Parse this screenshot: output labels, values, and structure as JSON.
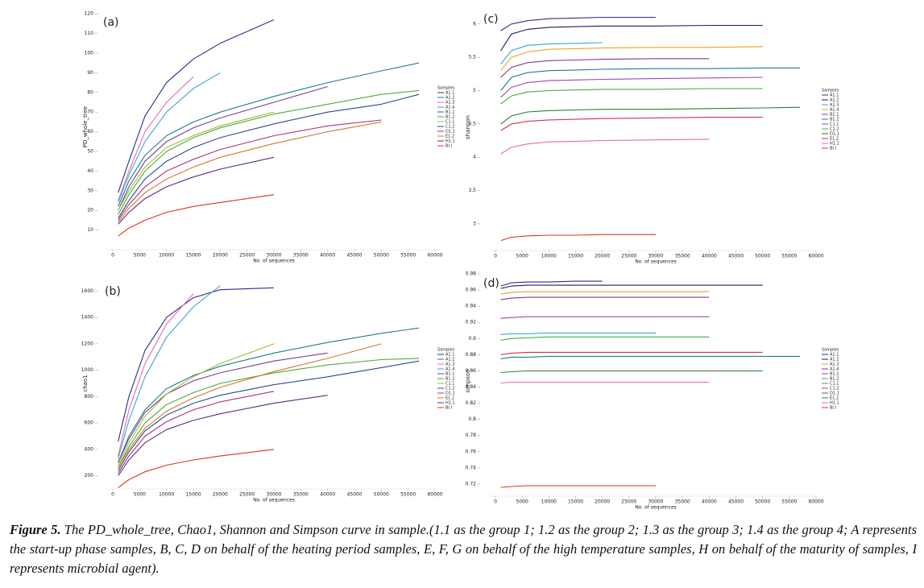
{
  "chart_data": [
    {
      "type": "line",
      "title": "(a)",
      "ylabel": "PD_whole_tree",
      "xlabel": "No. of sequences",
      "legend_title": "Samples",
      "x": [
        1000,
        3000,
        6000,
        10000,
        15000,
        20000,
        30000,
        40000,
        50000,
        57000
      ],
      "xlim": [
        0,
        60000
      ],
      "ylim": [
        0,
        125
      ],
      "xticks": [
        0,
        5000,
        10000,
        15000,
        20000,
        25000,
        30000,
        35000,
        40000,
        45000,
        50000,
        55000,
        60000
      ],
      "yticks": [
        10,
        20,
        30,
        40,
        50,
        60,
        70,
        80,
        90,
        100,
        110,
        120
      ],
      "series": [
        {
          "name": "A1.1",
          "color": "#2b2d8c",
          "values": [
            29,
            45,
            68,
            85,
            97,
            105,
            117,
            null,
            null,
            null
          ]
        },
        {
          "name": "A1.2",
          "color": "#1b7f8f",
          "values": [
            22,
            35,
            48,
            58,
            65,
            70,
            78,
            85,
            91,
            95
          ]
        },
        {
          "name": "A1.3",
          "color": "#e86aa8",
          "values": [
            25,
            40,
            60,
            75,
            88,
            null,
            null,
            null,
            null,
            null
          ]
        },
        {
          "name": "A1.4",
          "color": "#3aa6d6",
          "values": [
            24,
            38,
            55,
            70,
            82,
            90,
            null,
            null,
            null,
            null
          ]
        },
        {
          "name": "B1.1",
          "color": "#7a3d9a",
          "values": [
            20,
            32,
            45,
            55,
            62,
            67,
            75,
            83,
            null,
            null
          ]
        },
        {
          "name": "B1.2",
          "color": "#4caa3a",
          "values": [
            18,
            28,
            40,
            50,
            57,
            62,
            69,
            74,
            79,
            81
          ]
        },
        {
          "name": "C1.1",
          "color": "#9abf2a",
          "values": [
            20,
            30,
            42,
            52,
            58,
            63,
            70,
            null,
            null,
            null
          ]
        },
        {
          "name": "C1.2",
          "color": "#2a4a9a",
          "values": [
            16,
            25,
            36,
            45,
            52,
            57,
            64,
            70,
            74,
            79
          ]
        },
        {
          "name": "D1.1",
          "color": "#b0307a",
          "values": [
            15,
            23,
            32,
            40,
            46,
            51,
            58,
            63,
            66,
            null
          ]
        },
        {
          "name": "E1.2",
          "color": "#d9772a",
          "values": [
            14,
            21,
            29,
            36,
            42,
            47,
            54,
            60,
            65,
            null
          ]
        },
        {
          "name": "H1.1",
          "color": "#5b2a86",
          "values": [
            13,
            19,
            26,
            32,
            37,
            41,
            47,
            null,
            null,
            null
          ]
        },
        {
          "name": "BI.I",
          "color": "#e3321b",
          "values": [
            7,
            11,
            15,
            19,
            22,
            24,
            28,
            null,
            null,
            null
          ]
        }
      ]
    },
    {
      "type": "line",
      "title": "(b)",
      "ylabel": "chao1",
      "xlabel": "No. of sequences",
      "legend_title": "Samples",
      "x": [
        1000,
        3000,
        6000,
        10000,
        15000,
        20000,
        30000,
        40000,
        50000,
        57000
      ],
      "xlim": [
        0,
        60000
      ],
      "ylim": [
        100,
        1700
      ],
      "xticks": [
        0,
        5000,
        10000,
        15000,
        20000,
        25000,
        30000,
        35000,
        40000,
        45000,
        50000,
        55000,
        60000
      ],
      "yticks": [
        200,
        400,
        600,
        800,
        1000,
        1200,
        1400,
        1600
      ],
      "series": [
        {
          "name": "A1.1",
          "color": "#2b2d8c",
          "values": [
            460,
            800,
            1150,
            1400,
            1550,
            1610,
            1625,
            null,
            null,
            null
          ]
        },
        {
          "name": "A1.2",
          "color": "#1b7f8f",
          "values": [
            300,
            500,
            700,
            860,
            960,
            1030,
            1130,
            1210,
            1280,
            1320
          ]
        },
        {
          "name": "A1.3",
          "color": "#e86aa8",
          "values": [
            350,
            700,
            1050,
            1350,
            1580,
            null,
            null,
            null,
            null,
            null
          ]
        },
        {
          "name": "A1.4",
          "color": "#3aa6d6",
          "values": [
            330,
            620,
            950,
            1250,
            1480,
            1640,
            null,
            null,
            null,
            null
          ]
        },
        {
          "name": "B1.1",
          "color": "#7a3d9a",
          "values": [
            300,
            480,
            680,
            820,
            920,
            980,
            1070,
            1130,
            null,
            null
          ]
        },
        {
          "name": "B1.2",
          "color": "#4caa3a",
          "values": [
            260,
            420,
            600,
            740,
            830,
            900,
            980,
            1040,
            1080,
            1090
          ]
        },
        {
          "name": "C1.1",
          "color": "#9abf2a",
          "values": [
            280,
            450,
            650,
            820,
            950,
            1050,
            1200,
            null,
            null,
            null
          ]
        },
        {
          "name": "C1.2",
          "color": "#2a4a9a",
          "values": [
            240,
            380,
            540,
            660,
            750,
            810,
            890,
            950,
            1020,
            1070
          ]
        },
        {
          "name": "D1.1",
          "color": "#b0307a",
          "values": [
            220,
            350,
            500,
            610,
            700,
            760,
            840,
            null,
            null,
            null
          ]
        },
        {
          "name": "E1.2",
          "color": "#d9772a",
          "values": [
            260,
            400,
            560,
            690,
            790,
            870,
            990,
            1090,
            1200,
            null
          ]
        },
        {
          "name": "H1.1",
          "color": "#5b2a86",
          "values": [
            200,
            320,
            450,
            550,
            620,
            670,
            750,
            810,
            null,
            null
          ]
        },
        {
          "name": "BI.I",
          "color": "#e3321b",
          "values": [
            110,
            170,
            230,
            280,
            320,
            350,
            400,
            null,
            null,
            null
          ]
        }
      ]
    },
    {
      "type": "line",
      "title": "(c)",
      "ylabel": "shannon",
      "xlabel": "No. of sequences",
      "legend_title": "Samples",
      "x": [
        1000,
        3000,
        6000,
        10000,
        15000,
        20000,
        30000,
        40000,
        50000,
        57000
      ],
      "xlim": [
        0,
        60000
      ],
      "ylim": [
        2.6,
        6.3
      ],
      "xticks": [
        0,
        5000,
        10000,
        15000,
        20000,
        25000,
        30000,
        35000,
        40000,
        45000,
        50000,
        55000,
        60000
      ],
      "yticks": [
        3.0,
        3.5,
        4.0,
        4.5,
        5.0,
        5.5,
        6.0
      ],
      "series": [
        {
          "name": "A1.1",
          "color": "#2b2d8c",
          "values": [
            5.9,
            6.0,
            6.05,
            6.08,
            6.09,
            6.1,
            6.1,
            null,
            null,
            null
          ]
        },
        {
          "name": "A1.2",
          "color": "#1c1f5e",
          "values": [
            5.6,
            5.85,
            5.92,
            5.95,
            5.96,
            5.97,
            5.97,
            5.98,
            5.98,
            null
          ]
        },
        {
          "name": "A1.3",
          "color": "#3aa6d6",
          "values": [
            5.4,
            5.6,
            5.68,
            5.7,
            5.71,
            5.72,
            null,
            null,
            null,
            null
          ]
        },
        {
          "name": "A1.4",
          "color": "#f0a020",
          "values": [
            5.3,
            5.5,
            5.58,
            5.62,
            5.63,
            5.64,
            5.65,
            5.65,
            5.66,
            null
          ]
        },
        {
          "name": "B1.1",
          "color": "#7a3d9a",
          "values": [
            5.2,
            5.35,
            5.42,
            5.45,
            5.46,
            5.47,
            5.48,
            5.48,
            null,
            null
          ]
        },
        {
          "name": "B1.2",
          "color": "#1b7f8f",
          "values": [
            5.0,
            5.2,
            5.27,
            5.3,
            5.31,
            5.32,
            5.33,
            5.33,
            5.34,
            5.34
          ]
        },
        {
          "name": "C1.1",
          "color": "#9a4aa8",
          "values": [
            4.9,
            5.05,
            5.12,
            5.15,
            5.16,
            5.17,
            5.18,
            5.19,
            5.2,
            null
          ]
        },
        {
          "name": "C1.2",
          "color": "#4caa3a",
          "values": [
            4.8,
            4.92,
            4.98,
            5.0,
            5.01,
            5.02,
            5.02,
            5.03,
            5.03,
            null
          ]
        },
        {
          "name": "D1.1",
          "color": "#2f7a3a",
          "values": [
            4.5,
            4.62,
            4.68,
            4.7,
            4.71,
            4.72,
            4.72,
            4.73,
            4.74,
            4.75
          ]
        },
        {
          "name": "E1.2",
          "color": "#d2334a",
          "values": [
            4.4,
            4.5,
            4.54,
            4.56,
            4.57,
            4.58,
            4.59,
            4.6,
            4.6,
            null
          ]
        },
        {
          "name": "H1.1",
          "color": "#e86aa8",
          "values": [
            4.05,
            4.15,
            4.2,
            4.23,
            4.24,
            4.25,
            4.26,
            4.27,
            null,
            null
          ]
        },
        {
          "name": "BI.I",
          "color": "#e3321b",
          "values": [
            2.75,
            2.8,
            2.82,
            2.83,
            2.83,
            2.84,
            2.84,
            null,
            null,
            null
          ]
        }
      ]
    },
    {
      "type": "line",
      "title": "(d)",
      "ylabel": "simpson",
      "xlabel": "No. of sequences",
      "legend_title": "Samples",
      "x": [
        1000,
        3000,
        6000,
        10000,
        15000,
        20000,
        30000,
        40000,
        50000,
        57000
      ],
      "xlim": [
        0,
        60000
      ],
      "ylim": [
        0.705,
        0.99
      ],
      "xticks": [
        0,
        5000,
        10000,
        15000,
        20000,
        25000,
        30000,
        35000,
        40000,
        45000,
        50000,
        55000,
        60000
      ],
      "yticks": [
        0.72,
        0.74,
        0.76,
        0.78,
        0.8,
        0.82,
        0.84,
        0.86,
        0.88,
        0.9,
        0.92,
        0.94,
        0.96,
        0.98
      ],
      "series": [
        {
          "name": "A1.1",
          "color": "#2b2d8c",
          "values": [
            0.965,
            0.969,
            0.97,
            0.97,
            0.971,
            0.971,
            null,
            null,
            null,
            null
          ]
        },
        {
          "name": "A1.2",
          "color": "#1c1f5e",
          "values": [
            0.962,
            0.965,
            0.966,
            0.966,
            0.966,
            0.966,
            0.966,
            0.966,
            0.966,
            null
          ]
        },
        {
          "name": "A1.3",
          "color": "#f0a020",
          "values": [
            0.955,
            0.957,
            0.958,
            0.958,
            0.958,
            0.958,
            0.958,
            0.958,
            null,
            null
          ]
        },
        {
          "name": "A1.4",
          "color": "#7a3d9a",
          "values": [
            0.948,
            0.95,
            0.951,
            0.951,
            0.951,
            0.951,
            0.951,
            0.951,
            null,
            null
          ]
        },
        {
          "name": "B1.1",
          "color": "#9a4aa8",
          "values": [
            0.925,
            0.926,
            0.927,
            0.927,
            0.927,
            0.927,
            0.927,
            0.927,
            null,
            null
          ]
        },
        {
          "name": "B1.2",
          "color": "#3aa6d6",
          "values": [
            0.905,
            0.906,
            0.906,
            0.907,
            0.907,
            0.907,
            0.907,
            null,
            null,
            null
          ]
        },
        {
          "name": "C1.1",
          "color": "#4caa3a",
          "values": [
            0.898,
            0.9,
            0.901,
            0.902,
            0.902,
            0.902,
            0.902,
            0.902,
            null,
            null
          ]
        },
        {
          "name": "C1.2",
          "color": "#d2334a",
          "values": [
            0.88,
            0.882,
            0.883,
            0.883,
            0.883,
            0.883,
            0.883,
            0.883,
            0.883,
            null
          ]
        },
        {
          "name": "D1.1",
          "color": "#1b7f8f",
          "values": [
            0.875,
            0.877,
            0.877,
            0.878,
            0.878,
            0.878,
            0.878,
            0.878,
            0.878,
            0.878
          ]
        },
        {
          "name": "E1.2",
          "color": "#2f7a3a",
          "values": [
            0.858,
            0.859,
            0.86,
            0.86,
            0.86,
            0.86,
            0.86,
            0.86,
            0.86,
            null
          ]
        },
        {
          "name": "H1.1",
          "color": "#e86aa8",
          "values": [
            0.845,
            0.846,
            0.846,
            0.846,
            0.846,
            0.846,
            0.846,
            0.846,
            null,
            null
          ]
        },
        {
          "name": "BI.I",
          "color": "#e3321b",
          "values": [
            0.716,
            0.717,
            0.718,
            0.718,
            0.718,
            0.718,
            0.718,
            null,
            null,
            null
          ]
        }
      ]
    }
  ],
  "caption": {
    "label": "Figure 5.",
    "text": "The PD_whole_tree, Chao1, Shannon and Simpson curve in sample.(1.1 as the group 1; 1.2 as the group 2; 1.3 as the group 3; 1.4 as the group 4; A represents the start-up phase samples, B, C, D on behalf of the heating period samples, E, F, G on behalf of the high temperature samples, H on behalf of the maturity of samples, I represents microbial agent)."
  }
}
